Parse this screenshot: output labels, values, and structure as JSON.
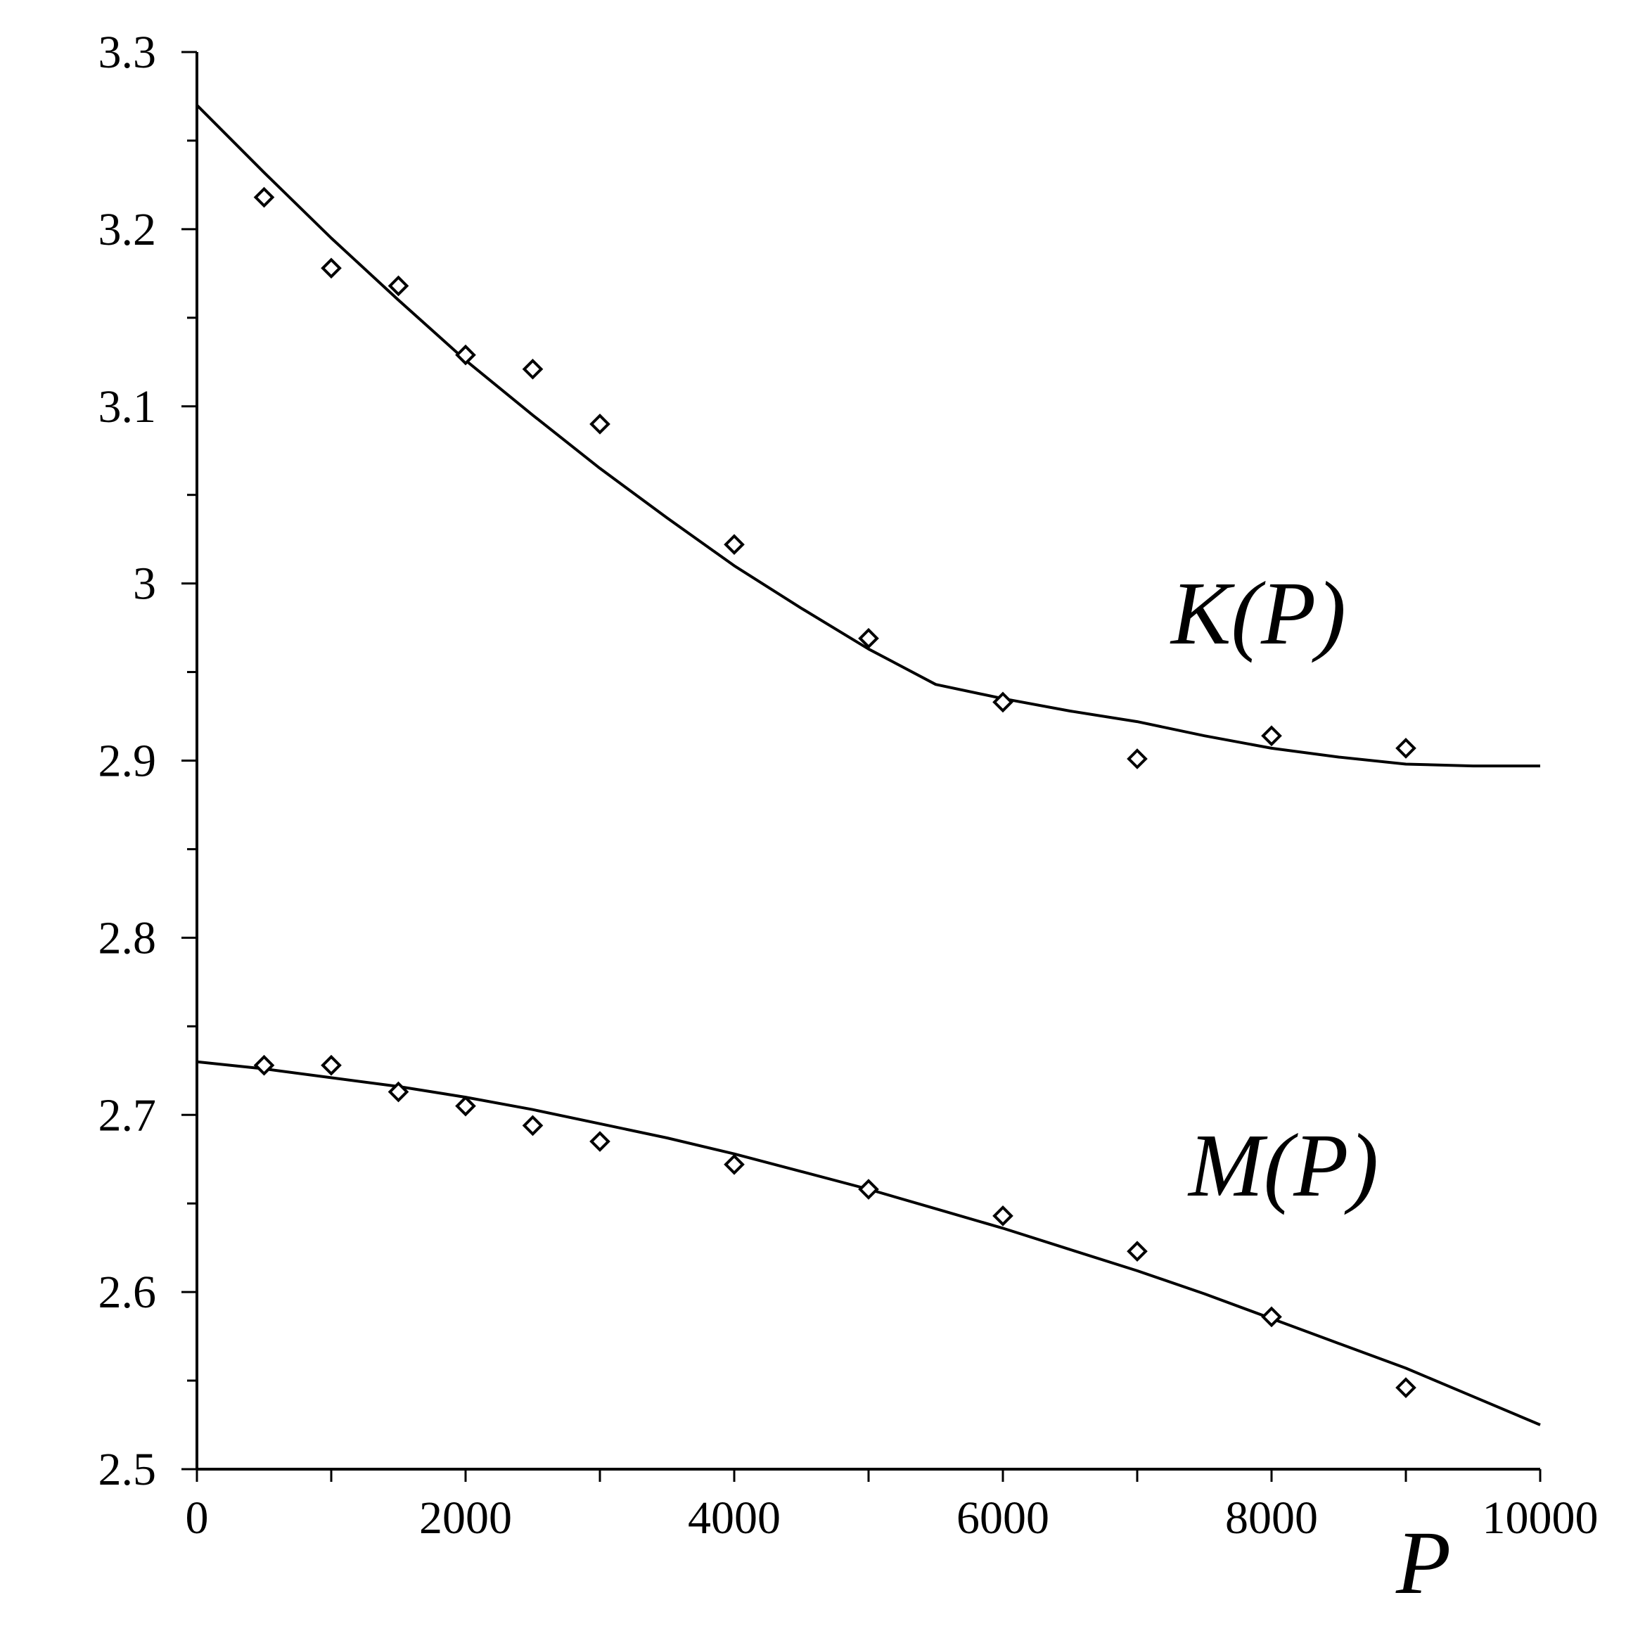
{
  "chart_data": {
    "type": "scatter",
    "xlabel": "P",
    "ylabel": "",
    "xlim": [
      0,
      10000
    ],
    "ylim": [
      2.5,
      3.3
    ],
    "x_ticks": [
      0,
      2000,
      4000,
      6000,
      8000,
      10000
    ],
    "x_tick_labels": [
      "0",
      "2000",
      "4000",
      "6000",
      "8000",
      "10000"
    ],
    "x_minor_step": 1000,
    "y_ticks": [
      2.5,
      2.6,
      2.7,
      2.8,
      2.9,
      3.0,
      3.1,
      3.2,
      3.3
    ],
    "y_tick_labels": [
      "2.5",
      "2.6",
      "2.7",
      "2.8",
      "2.9",
      "3",
      "3.1",
      "3.2",
      "3.3"
    ],
    "y_minor_step": 0.05,
    "grid": false,
    "legend": "none",
    "series": [
      {
        "name": "K(P)",
        "marker": "diamond",
        "points": [
          [
            500,
            3.218
          ],
          [
            1000,
            3.178
          ],
          [
            1500,
            3.168
          ],
          [
            2000,
            3.129
          ],
          [
            2500,
            3.121
          ],
          [
            3000,
            3.09
          ],
          [
            4000,
            3.022
          ],
          [
            5000,
            2.969
          ],
          [
            6000,
            2.933
          ],
          [
            7000,
            2.901
          ],
          [
            8000,
            2.914
          ],
          [
            9000,
            2.907
          ]
        ],
        "fit": [
          [
            0,
            3.27
          ],
          [
            500,
            3.232
          ],
          [
            1000,
            3.195
          ],
          [
            1500,
            3.16
          ],
          [
            2000,
            3.126
          ],
          [
            2500,
            3.095
          ],
          [
            3000,
            3.065
          ],
          [
            3500,
            3.037
          ],
          [
            4000,
            3.01
          ],
          [
            4500,
            2.986
          ],
          [
            5000,
            2.963
          ],
          [
            5500,
            2.943
          ],
          [
            6000,
            2.935
          ],
          [
            6500,
            2.928
          ],
          [
            7000,
            2.922
          ],
          [
            7500,
            2.914
          ],
          [
            8000,
            2.907
          ],
          [
            8500,
            2.902
          ],
          [
            9000,
            2.898
          ],
          [
            9500,
            2.897
          ],
          [
            10000,
            2.897
          ]
        ]
      },
      {
        "name": "M(P)",
        "marker": "diamond",
        "points": [
          [
            500,
            2.728
          ],
          [
            1000,
            2.728
          ],
          [
            1500,
            2.713
          ],
          [
            2000,
            2.705
          ],
          [
            2500,
            2.694
          ],
          [
            3000,
            2.685
          ],
          [
            4000,
            2.672
          ],
          [
            5000,
            2.658
          ],
          [
            6000,
            2.643
          ],
          [
            7000,
            2.623
          ],
          [
            8000,
            2.586
          ],
          [
            9000,
            2.546
          ]
        ],
        "fit": [
          [
            0,
            2.73
          ],
          [
            500,
            2.726
          ],
          [
            1000,
            2.721
          ],
          [
            1500,
            2.716
          ],
          [
            2000,
            2.71
          ],
          [
            2500,
            2.703
          ],
          [
            3000,
            2.695
          ],
          [
            3500,
            2.687
          ],
          [
            4000,
            2.678
          ],
          [
            4500,
            2.668
          ],
          [
            5000,
            2.658
          ],
          [
            5500,
            2.647
          ],
          [
            6000,
            2.636
          ],
          [
            6500,
            2.624
          ],
          [
            7000,
            2.612
          ],
          [
            7500,
            2.599
          ],
          [
            8000,
            2.585
          ],
          [
            8500,
            2.571
          ],
          [
            9000,
            2.557
          ],
          [
            9500,
            2.541
          ],
          [
            10000,
            2.525
          ]
        ]
      }
    ]
  }
}
